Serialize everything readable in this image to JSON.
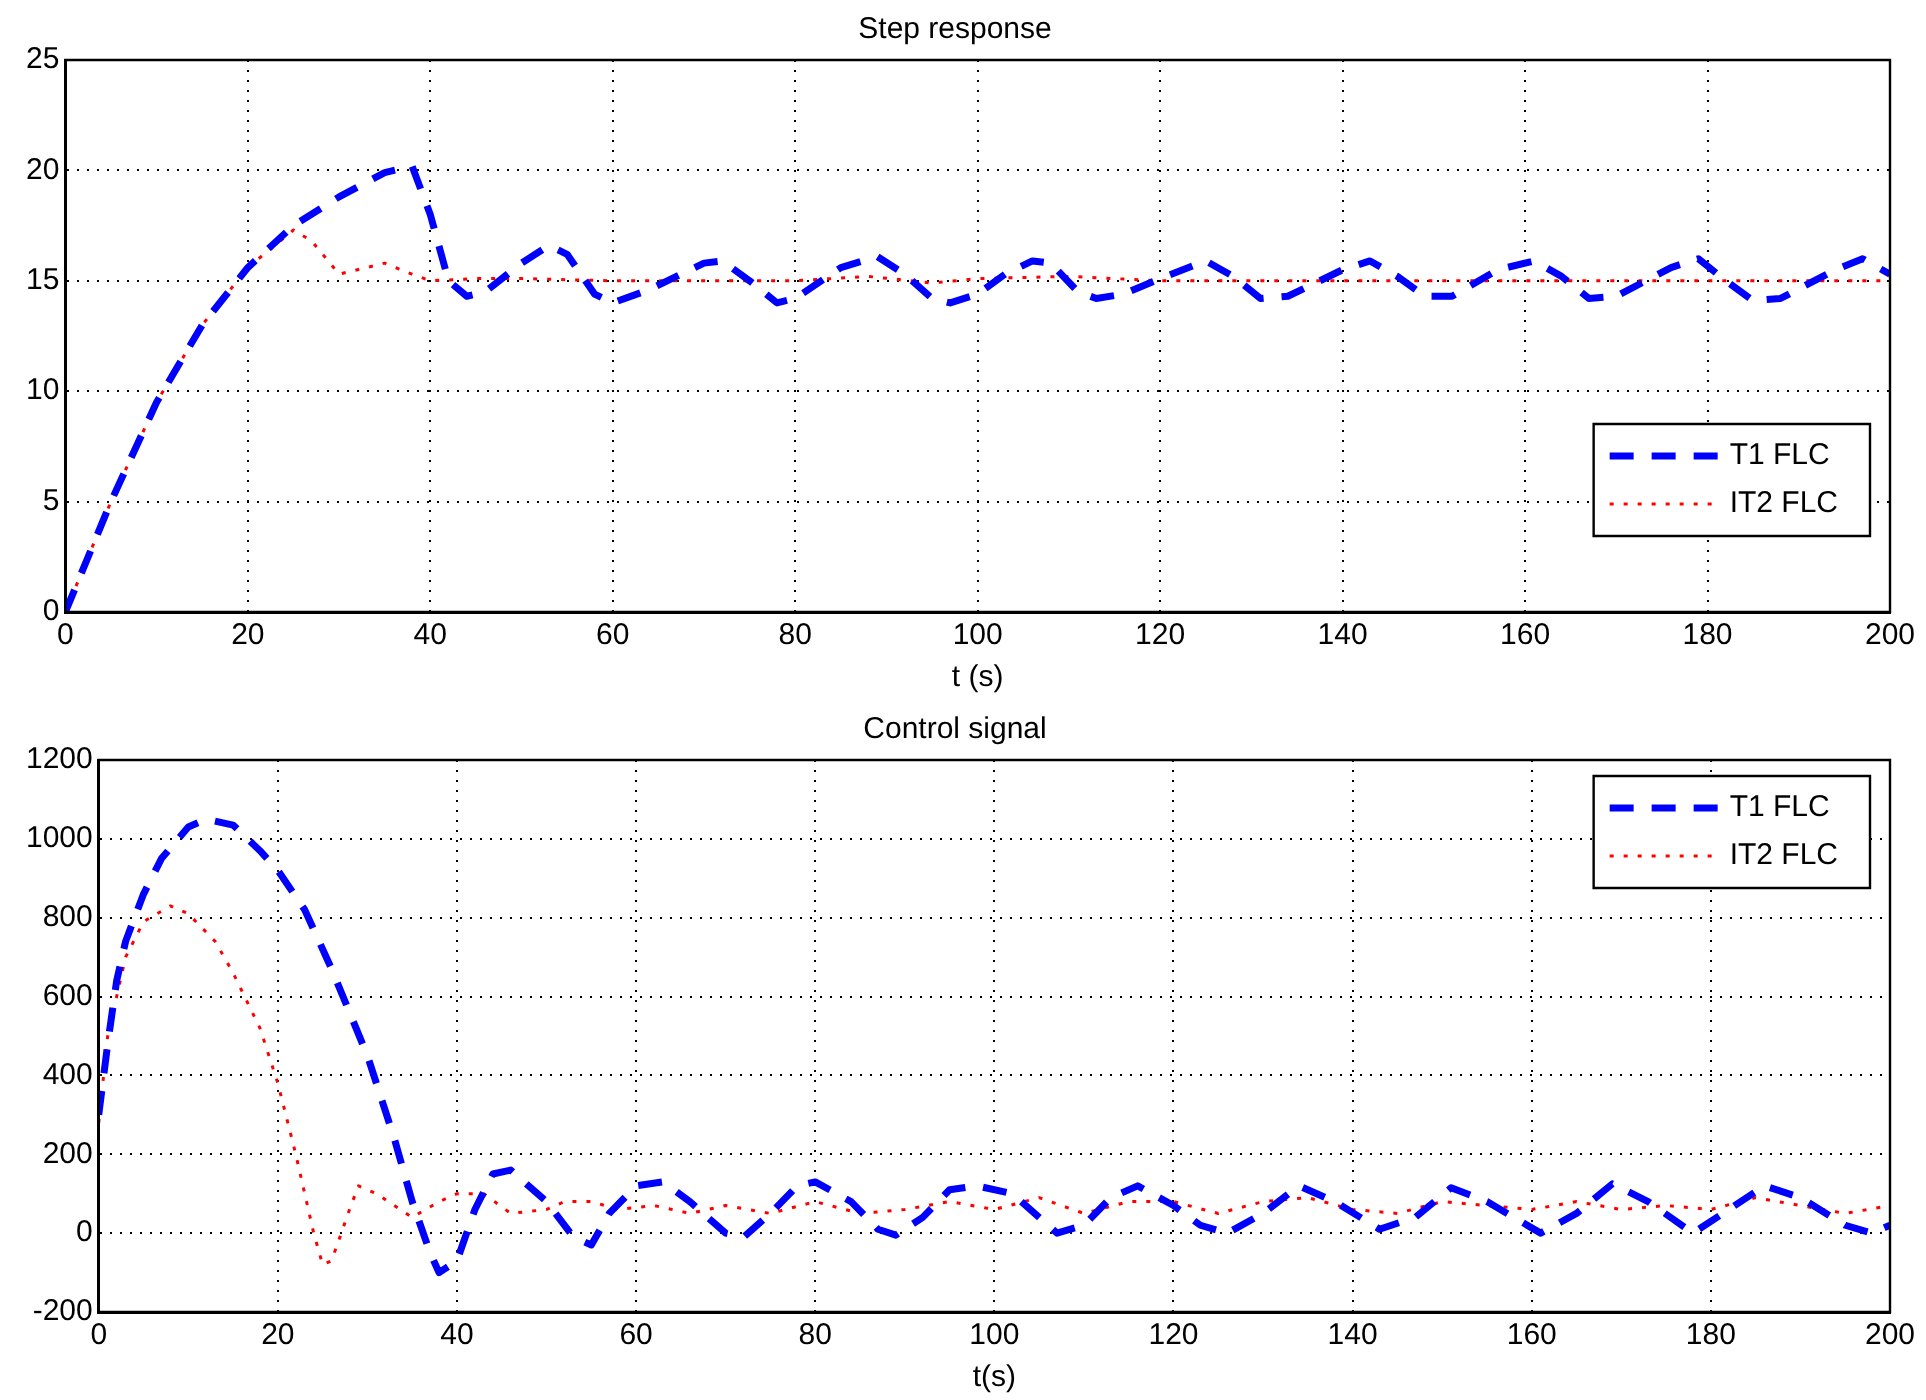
{
  "chart_data": [
    {
      "type": "line",
      "title": "Step response",
      "xlabel": "t (s)",
      "xlim": [
        0,
        200
      ],
      "xticks": [
        0,
        20,
        40,
        60,
        80,
        100,
        120,
        140,
        160,
        180,
        200
      ],
      "ylim": [
        0,
        25
      ],
      "yticks": [
        0,
        5,
        10,
        15,
        20,
        25
      ],
      "grid": true,
      "legend": "bottom right",
      "marker": "none",
      "series": [
        {
          "name": "T1 FLC",
          "color": "#0000ff",
          "line_style": "dashed",
          "x": [
            0,
            5,
            10,
            15,
            20,
            25,
            30,
            35,
            38,
            40,
            42,
            44,
            46,
            50,
            53,
            55,
            58,
            60,
            64,
            70,
            72,
            75,
            78,
            80,
            85,
            89,
            92,
            95,
            97,
            100,
            103,
            106,
            108,
            111,
            113,
            116,
            120,
            125,
            128,
            131,
            134,
            140,
            143,
            146,
            149,
            152,
            157,
            161,
            164,
            167,
            170,
            176,
            179,
            182,
            185,
            188,
            194,
            197,
            200
          ],
          "values": [
            0,
            5,
            9.5,
            13,
            15.6,
            17.5,
            18.8,
            19.9,
            20.2,
            18,
            15,
            14.3,
            14.5,
            15.8,
            16.6,
            16.2,
            14.4,
            14,
            14.6,
            15.8,
            15.9,
            15,
            14,
            14.2,
            15.6,
            16.1,
            15.3,
            14.2,
            14,
            14.4,
            15.3,
            15.9,
            15.8,
            14.5,
            14.2,
            14.4,
            15.1,
            15.9,
            15.2,
            14.2,
            14.3,
            15.5,
            15.9,
            15.2,
            14.3,
            14.3,
            15.5,
            15.9,
            15.2,
            14.2,
            14.3,
            15.6,
            16,
            15,
            14.1,
            14.2,
            15.5,
            16,
            15.3
          ]
        },
        {
          "name": "IT2 FLC",
          "color": "#ff0000",
          "line_style": "dotted",
          "x": [
            0,
            5,
            10,
            15,
            20,
            25,
            27,
            30,
            32,
            35,
            38,
            40,
            45,
            50,
            60,
            70,
            80,
            88,
            95,
            100,
            110,
            120,
            140,
            160,
            180,
            200
          ],
          "values": [
            0,
            5,
            9.5,
            13,
            15.6,
            17.3,
            16.8,
            15.3,
            15.5,
            15.8,
            15.3,
            15,
            15.1,
            15.1,
            15,
            15,
            15,
            15.2,
            14.9,
            15.1,
            15.2,
            15,
            15,
            15,
            15,
            15
          ]
        }
      ]
    },
    {
      "type": "line",
      "title": "Control signal",
      "xlabel": "t(s)",
      "xlim": [
        0,
        200
      ],
      "xticks": [
        0,
        20,
        40,
        60,
        80,
        100,
        120,
        140,
        160,
        180,
        200
      ],
      "ylim": [
        -200,
        1200
      ],
      "yticks": [
        -200,
        0,
        200,
        400,
        600,
        800,
        1000,
        1200
      ],
      "grid": true,
      "legend": "top right",
      "marker": "none",
      "series": [
        {
          "name": "T1 FLC",
          "color": "#0000ff",
          "line_style": "dashed",
          "x": [
            0,
            1,
            2,
            3,
            5,
            7,
            10,
            12,
            15,
            18,
            20,
            23,
            26,
            30,
            33,
            35,
            37,
            38,
            40,
            42,
            44,
            46,
            50,
            53,
            55,
            57,
            60,
            63,
            66,
            70,
            72,
            75,
            78,
            80,
            84,
            87,
            89,
            92,
            95,
            98,
            102,
            105,
            107,
            110,
            113,
            116,
            120,
            123,
            126,
            130,
            134,
            138,
            143,
            147,
            151,
            155,
            161,
            165,
            169,
            173,
            178,
            182,
            186,
            190,
            195,
            198,
            200
          ],
          "values": [
            300,
            480,
            640,
            740,
            860,
            950,
            1030,
            1050,
            1035,
            970,
            920,
            820,
            670,
            450,
            240,
            80,
            -50,
            -100,
            -70,
            60,
            150,
            160,
            80,
            -10,
            -30,
            50,
            120,
            130,
            80,
            0,
            -10,
            50,
            120,
            130,
            80,
            10,
            -5,
            40,
            110,
            120,
            100,
            40,
            0,
            20,
            90,
            120,
            70,
            20,
            0,
            50,
            120,
            80,
            10,
            40,
            115,
            80,
            0,
            50,
            125,
            80,
            0,
            60,
            120,
            90,
            20,
            0,
            20
          ]
        },
        {
          "name": "IT2 FLC",
          "color": "#ff0000",
          "line_style": "dotted",
          "x": [
            0,
            1,
            3,
            5,
            8,
            10,
            13,
            15,
            18,
            20,
            22,
            24,
            25,
            26,
            28,
            29,
            31,
            35,
            38,
            40,
            43,
            46,
            50,
            52,
            55,
            58,
            62,
            66,
            70,
            75,
            80,
            85,
            90,
            95,
            100,
            105,
            110,
            115,
            120,
            125,
            130,
            135,
            140,
            145,
            150,
            155,
            160,
            165,
            170,
            175,
            180,
            185,
            190,
            195,
            200
          ],
          "values": [
            280,
            500,
            700,
            790,
            830,
            810,
            740,
            660,
            520,
            380,
            200,
            0,
            -80,
            -70,
            60,
            120,
            100,
            40,
            80,
            100,
            100,
            50,
            60,
            80,
            80,
            60,
            70,
            50,
            70,
            50,
            80,
            50,
            60,
            80,
            60,
            90,
            50,
            80,
            80,
            50,
            80,
            90,
            60,
            50,
            80,
            70,
            60,
            80,
            60,
            70,
            60,
            90,
            70,
            50,
            70
          ]
        }
      ]
    }
  ]
}
